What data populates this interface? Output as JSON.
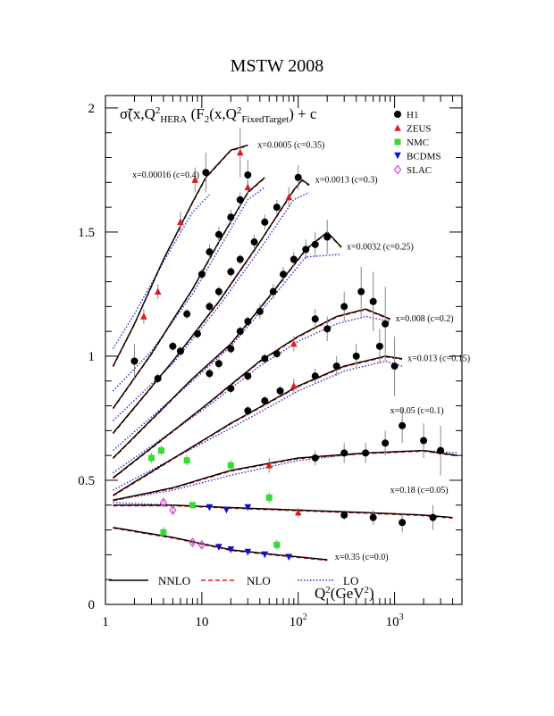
{
  "chart_data": {
    "type": "scatter",
    "title": "MSTW 2008",
    "ylabel": {
      "pre": "σ̃(x,Q",
      "sup1": "2",
      "sub1": "HERA",
      "mid": " (F",
      "sub2": "2",
      "mid2": "(x,Q",
      "sup2": "2",
      "sub3": "FixedTarget",
      "post": ") + c"
    },
    "xlabel": {
      "pre": "Q",
      "sup": "2",
      "post": "(GeV",
      "sup2": "2",
      "end": ")"
    },
    "x_scale": "log",
    "xlim": [
      1,
      5000
    ],
    "ylim": [
      0,
      2.05
    ],
    "y_ticks": [
      "0",
      "0.5",
      "1",
      "1.5",
      "2"
    ],
    "x_ticks": [
      {
        "value": 1,
        "base": "1",
        "exp": ""
      },
      {
        "value": 10,
        "base": "10",
        "exp": ""
      },
      {
        "value": 100,
        "base": "10",
        "exp": "2"
      },
      {
        "value": 1000,
        "base": "10",
        "exp": "3"
      }
    ],
    "legend_position": "top-right",
    "experiments": [
      {
        "name": "H1",
        "marker": "circle",
        "color": "#000000"
      },
      {
        "name": "ZEUS",
        "marker": "triangle-up",
        "color": "#e31a1c"
      },
      {
        "name": "NMC",
        "marker": "square",
        "color": "#33dd33"
      },
      {
        "name": "BCDMS",
        "marker": "triangle-down",
        "color": "#1010cc"
      },
      {
        "name": "SLAC",
        "marker": "open-diamond",
        "color": "#dd44dd"
      }
    ],
    "theory_legend": [
      {
        "name": "NNLO",
        "style": "solid",
        "color": "#000000"
      },
      {
        "name": "NLO",
        "style": "dashed",
        "color": "#e31a1c"
      },
      {
        "name": "LO",
        "style": "dotted",
        "color": "#2a2ad0"
      }
    ],
    "bins": [
      {
        "label": "x=0.00016 (c=0.4)",
        "nnlo": [
          [
            1.2,
            0.96
          ],
          [
            2,
            1.13
          ],
          [
            4,
            1.39
          ],
          [
            8,
            1.62
          ],
          [
            11,
            1.72
          ],
          [
            20,
            1.83
          ],
          [
            30,
            1.85
          ]
        ],
        "lo": [
          [
            1.2,
            1.03
          ],
          [
            2,
            1.17
          ],
          [
            4,
            1.38
          ],
          [
            8,
            1.58
          ],
          [
            12,
            1.65
          ]
        ],
        "points": [
          [
            2,
            0.98,
            "H1",
            0.07
          ],
          [
            2.5,
            1.16,
            "ZEUS",
            0.03
          ],
          [
            3.5,
            1.26,
            "ZEUS",
            0.03
          ],
          [
            6,
            1.54,
            "ZEUS",
            0.04
          ],
          [
            8.5,
            1.71,
            "ZEUS",
            0.05
          ],
          [
            11,
            1.74,
            "H1",
            0.08
          ],
          [
            25,
            1.82,
            "ZEUS",
            0.1
          ],
          [
            30,
            1.73,
            "H1",
            0.06
          ]
        ]
      },
      {
        "label": "x=0.0005 (c=0.35)",
        "nnlo": [
          [
            1.2,
            0.79
          ],
          [
            3,
            1.01
          ],
          [
            8,
            1.27
          ],
          [
            15,
            1.46
          ],
          [
            30,
            1.66
          ],
          [
            45,
            1.72
          ]
        ],
        "lo": [
          [
            1.2,
            0.86
          ],
          [
            3,
            1.02
          ],
          [
            8,
            1.25
          ],
          [
            15,
            1.43
          ],
          [
            30,
            1.63
          ],
          [
            45,
            1.68
          ]
        ],
        "points": [
          [
            3.5,
            0.91,
            "H1",
            0.02
          ],
          [
            5,
            1.04,
            "H1",
            0.02
          ],
          [
            7,
            1.17,
            "H1",
            0.02
          ],
          [
            10,
            1.33,
            "H1",
            0.02
          ],
          [
            12,
            1.42,
            "H1",
            0.03
          ],
          [
            15,
            1.49,
            "H1",
            0.03
          ],
          [
            20,
            1.56,
            "H1",
            0.03
          ],
          [
            25,
            1.63,
            "H1",
            0.03
          ],
          [
            30,
            1.68,
            "ZEUS",
            0.03
          ]
        ]
      },
      {
        "label": "x=0.0013 (c=0.3)",
        "nnlo": [
          [
            1.2,
            0.69
          ],
          [
            5,
            0.98
          ],
          [
            15,
            1.22
          ],
          [
            40,
            1.46
          ],
          [
            90,
            1.67
          ],
          [
            110,
            1.71
          ],
          [
            130,
            1.69
          ]
        ],
        "lo": [
          [
            1.2,
            0.74
          ],
          [
            5,
            0.97
          ],
          [
            15,
            1.2
          ],
          [
            40,
            1.43
          ],
          [
            90,
            1.63
          ],
          [
            130,
            1.66
          ]
        ],
        "points": [
          [
            6,
            1.02,
            "H1",
            0.02
          ],
          [
            9,
            1.09,
            "H1",
            0.02
          ],
          [
            12,
            1.2,
            "H1",
            0.02
          ],
          [
            15,
            1.26,
            "H1",
            0.02
          ],
          [
            20,
            1.34,
            "H1",
            0.02
          ],
          [
            25,
            1.39,
            "H1",
            0.02
          ],
          [
            35,
            1.46,
            "H1",
            0.03
          ],
          [
            45,
            1.54,
            "H1",
            0.03
          ],
          [
            60,
            1.6,
            "H1",
            0.03
          ],
          [
            80,
            1.64,
            "ZEUS",
            0.04
          ],
          [
            100,
            1.72,
            "H1",
            0.05
          ]
        ]
      },
      {
        "label": "x=0.0032 (c=0.25)",
        "nnlo": [
          [
            1.2,
            0.59
          ],
          [
            8,
            0.91
          ],
          [
            20,
            1.05
          ],
          [
            50,
            1.24
          ],
          [
            120,
            1.43
          ],
          [
            200,
            1.5
          ],
          [
            280,
            1.44
          ]
        ],
        "lo": [
          [
            1.2,
            0.62
          ],
          [
            8,
            0.9
          ],
          [
            20,
            1.04
          ],
          [
            50,
            1.22
          ],
          [
            120,
            1.4
          ],
          [
            280,
            1.41
          ]
        ],
        "points": [
          [
            12,
            0.93,
            "H1",
            0.02
          ],
          [
            15,
            0.97,
            "H1",
            0.02
          ],
          [
            20,
            1.03,
            "H1",
            0.02
          ],
          [
            25,
            1.1,
            "H1",
            0.02
          ],
          [
            30,
            1.14,
            "H1",
            0.02
          ],
          [
            40,
            1.18,
            "H1",
            0.03
          ],
          [
            55,
            1.26,
            "H1",
            0.03
          ],
          [
            70,
            1.33,
            "H1",
            0.03
          ],
          [
            90,
            1.39,
            "H1",
            0.03
          ],
          [
            120,
            1.43,
            "H1",
            0.04
          ],
          [
            150,
            1.45,
            "H1",
            0.05
          ],
          [
            200,
            1.48,
            "H1",
            0.07
          ]
        ]
      },
      {
        "label": "x=0.008 (c=0.2)",
        "nnlo": [
          [
            1.2,
            0.51
          ],
          [
            10,
            0.79
          ],
          [
            40,
            0.98
          ],
          [
            100,
            1.08
          ],
          [
            250,
            1.16
          ],
          [
            500,
            1.19
          ],
          [
            900,
            1.15
          ]
        ],
        "lo": [
          [
            1.2,
            0.53
          ],
          [
            10,
            0.78
          ],
          [
            40,
            0.96
          ],
          [
            100,
            1.06
          ],
          [
            250,
            1.13
          ],
          [
            500,
            1.16
          ],
          [
            900,
            1.14
          ]
        ],
        "points": [
          [
            20,
            0.87,
            "H1",
            0.02
          ],
          [
            30,
            0.92,
            "H1",
            0.02
          ],
          [
            45,
            0.99,
            "H1",
            0.02
          ],
          [
            60,
            1.01,
            "H1",
            0.02
          ],
          [
            90,
            1.05,
            "ZEUS",
            0.03
          ],
          [
            150,
            1.15,
            "H1",
            0.04
          ],
          [
            200,
            1.11,
            "H1",
            0.05
          ],
          [
            300,
            1.2,
            "H1",
            0.06
          ],
          [
            450,
            1.26,
            "H1",
            0.1
          ],
          [
            600,
            1.22,
            "H1",
            0.12
          ],
          [
            800,
            1.13,
            "H1",
            0.15
          ]
        ]
      },
      {
        "label": "x=0.013 (c=0.15)",
        "nnlo": [
          [
            1.2,
            0.44
          ],
          [
            20,
            0.73
          ],
          [
            100,
            0.88
          ],
          [
            300,
            0.96
          ],
          [
            800,
            1.0
          ],
          [
            1200,
            0.99
          ]
        ],
        "lo": [
          [
            1.2,
            0.46
          ],
          [
            20,
            0.71
          ],
          [
            100,
            0.86
          ],
          [
            300,
            0.94
          ],
          [
            800,
            0.98
          ],
          [
            1200,
            0.96
          ]
        ],
        "points": [
          [
            30,
            0.78,
            "H1",
            0.02
          ],
          [
            45,
            0.82,
            "H1",
            0.02
          ],
          [
            65,
            0.86,
            "H1",
            0.02
          ],
          [
            90,
            0.88,
            "ZEUS",
            0.03
          ],
          [
            150,
            0.92,
            "H1",
            0.03
          ],
          [
            250,
            0.96,
            "H1",
            0.04
          ],
          [
            400,
            1.0,
            "H1",
            0.05
          ],
          [
            700,
            1.04,
            "H1",
            0.07
          ],
          [
            1000,
            0.96,
            "H1",
            0.12
          ]
        ]
      },
      {
        "label": "x=0.05 (c=0.1)",
        "nnlo": [
          [
            1.2,
            0.42
          ],
          [
            5,
            0.47
          ],
          [
            20,
            0.54
          ],
          [
            100,
            0.59
          ],
          [
            500,
            0.61
          ],
          [
            2000,
            0.62
          ],
          [
            4500,
            0.6
          ]
        ],
        "lo": [
          [
            1.2,
            0.42
          ],
          [
            5,
            0.46
          ],
          [
            20,
            0.52
          ],
          [
            100,
            0.58
          ],
          [
            500,
            0.61
          ],
          [
            2000,
            0.62
          ],
          [
            4500,
            0.61
          ]
        ],
        "points": [
          [
            3,
            0.59,
            "NMC",
            0.02
          ],
          [
            3.8,
            0.62,
            "NMC",
            0.02
          ],
          [
            7,
            0.58,
            "NMC",
            0.02
          ],
          [
            20,
            0.56,
            "NMC",
            0.02
          ],
          [
            50,
            0.56,
            "ZEUS",
            0.03
          ],
          [
            150,
            0.59,
            "H1",
            0.03
          ],
          [
            300,
            0.61,
            "H1",
            0.04
          ],
          [
            500,
            0.61,
            "H1",
            0.04
          ],
          [
            800,
            0.65,
            "H1",
            0.05
          ],
          [
            1200,
            0.72,
            "H1",
            0.07
          ],
          [
            2000,
            0.66,
            "H1",
            0.07
          ],
          [
            3000,
            0.62,
            "H1",
            0.1
          ]
        ]
      },
      {
        "label": "x=0.18 (c=0.05)",
        "nnlo": [
          [
            1.2,
            0.4
          ],
          [
            5,
            0.4
          ],
          [
            20,
            0.39
          ],
          [
            100,
            0.38
          ],
          [
            500,
            0.37
          ],
          [
            2000,
            0.36
          ],
          [
            4000,
            0.35
          ]
        ],
        "lo": [
          [
            1.2,
            0.41
          ],
          [
            5,
            0.4
          ],
          [
            20,
            0.39
          ],
          [
            100,
            0.38
          ],
          [
            500,
            0.37
          ],
          [
            2000,
            0.36
          ],
          [
            4000,
            0.35
          ]
        ],
        "points": [
          [
            4,
            0.41,
            "SLAC",
            0.02
          ],
          [
            5,
            0.38,
            "SLAC",
            0.02
          ],
          [
            8,
            0.4,
            "NMC",
            0.01
          ],
          [
            12,
            0.39,
            "BCDMS",
            0.01
          ],
          [
            18,
            0.38,
            "BCDMS",
            0.01
          ],
          [
            30,
            0.39,
            "BCDMS",
            0.01
          ],
          [
            50,
            0.43,
            "NMC",
            0.02
          ],
          [
            100,
            0.37,
            "ZEUS",
            0.02
          ],
          [
            300,
            0.36,
            "H1",
            0.02
          ],
          [
            600,
            0.35,
            "H1",
            0.03
          ],
          [
            1200,
            0.33,
            "H1",
            0.04
          ],
          [
            2500,
            0.35,
            "H1",
            0.05
          ]
        ]
      },
      {
        "label": "x=0.35 (c=0.0)",
        "nnlo": [
          [
            1.2,
            0.31
          ],
          [
            5,
            0.27
          ],
          [
            20,
            0.22
          ],
          [
            60,
            0.2
          ],
          [
            200,
            0.18
          ]
        ],
        "lo": [
          [
            1.2,
            0.31
          ],
          [
            5,
            0.27
          ],
          [
            20,
            0.22
          ],
          [
            60,
            0.2
          ],
          [
            200,
            0.18
          ]
        ],
        "points": [
          [
            4,
            0.29,
            "NMC",
            0.02
          ],
          [
            8,
            0.25,
            "SLAC",
            0.01
          ],
          [
            10,
            0.24,
            "SLAC",
            0.01
          ],
          [
            15,
            0.23,
            "BCDMS",
            0.01
          ],
          [
            20,
            0.22,
            "BCDMS",
            0.01
          ],
          [
            30,
            0.21,
            "BCDMS",
            0.01
          ],
          [
            45,
            0.2,
            "BCDMS",
            0.01
          ],
          [
            60,
            0.24,
            "NMC",
            0.02
          ],
          [
            80,
            0.19,
            "BCDMS",
            0.01
          ]
        ]
      }
    ]
  }
}
